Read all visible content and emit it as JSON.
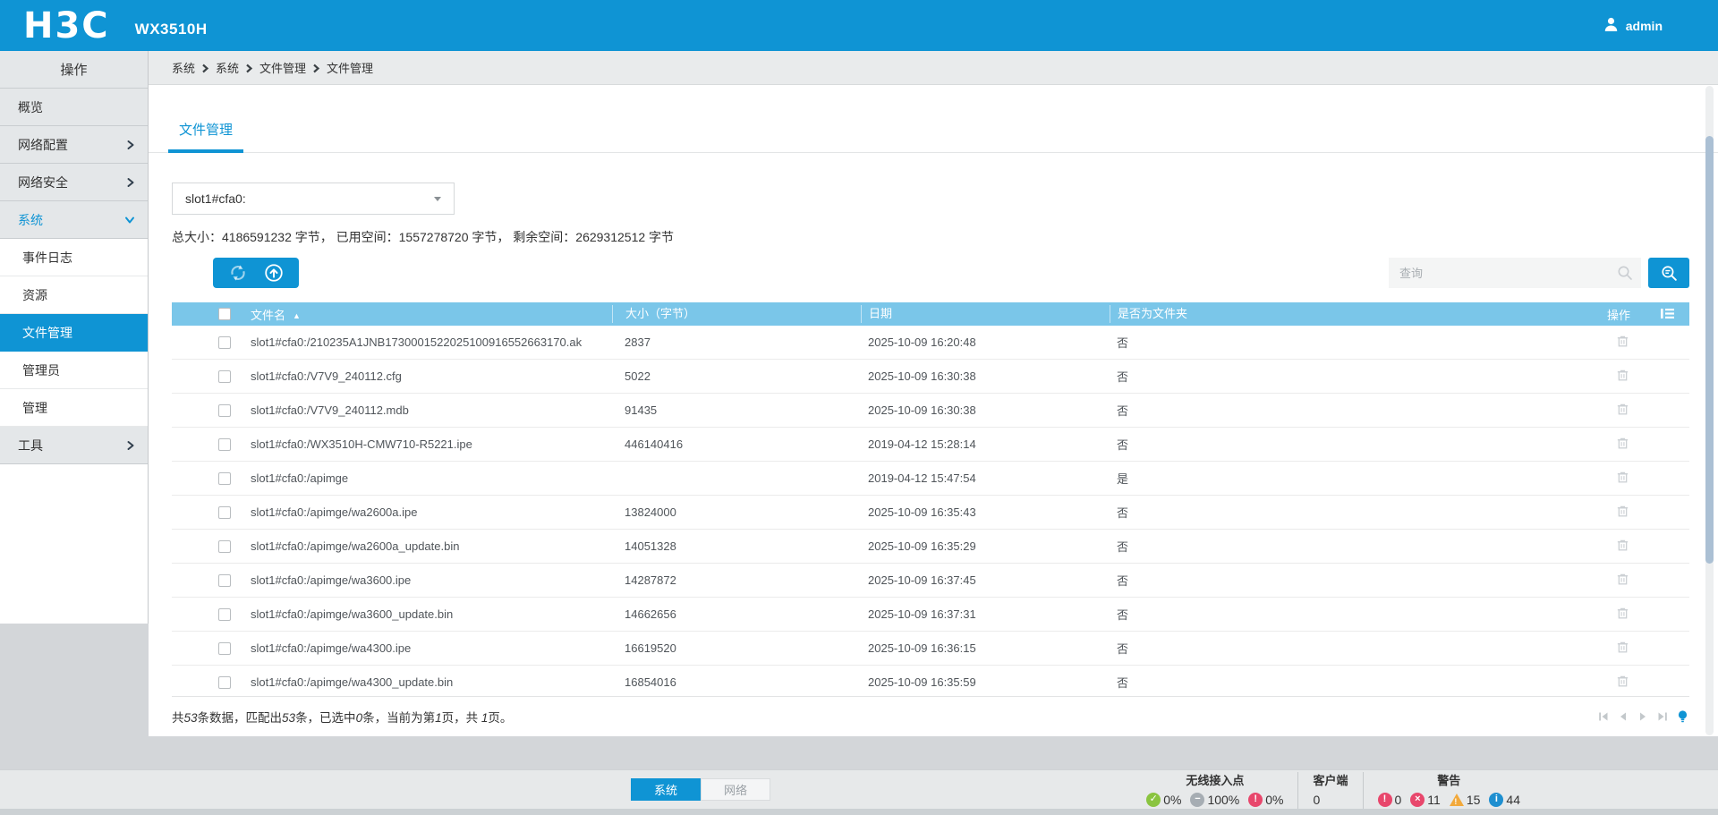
{
  "brand": {
    "logo_text": "H3C",
    "model": "WX3510H"
  },
  "user": {
    "name": "admin"
  },
  "colors": {
    "accent": "#0f94d4",
    "table_header_bg": "#7ac6e9",
    "success": "#8ac440",
    "neutral": "#a6adb3",
    "danger": "#e8476c",
    "warning": "#f2a93b",
    "info": "#1e8fd0"
  },
  "sidebar": {
    "title": "操作",
    "items": [
      {
        "label": "概览",
        "level": "top"
      },
      {
        "label": "网络配置",
        "level": "top",
        "chevron": "right"
      },
      {
        "label": "网络安全",
        "level": "top",
        "chevron": "right"
      },
      {
        "label": "系统",
        "level": "top",
        "chevron": "down",
        "active": true
      },
      {
        "label": "事件日志",
        "level": "sub"
      },
      {
        "label": "资源",
        "level": "sub"
      },
      {
        "label": "文件管理",
        "level": "sub",
        "selected": true
      },
      {
        "label": "管理员",
        "level": "sub"
      },
      {
        "label": "管理",
        "level": "sub"
      },
      {
        "label": "工具",
        "level": "top",
        "chevron": "right"
      }
    ]
  },
  "breadcrumb": [
    "系统",
    "系统",
    "文件管理",
    "文件管理"
  ],
  "tabs": {
    "file_management": "文件管理"
  },
  "file_panel": {
    "volume_selected": "slot1#cfa0:",
    "storage_summary": "总大小：4186591232 字节， 已用空间：1557278720 字节， 剩余空间：2629312512 字节",
    "search": {
      "placeholder": "查询"
    }
  },
  "table": {
    "headers": {
      "name": "文件名",
      "size": "大小（字节）",
      "date": "日期",
      "folder": "是否为文件夹",
      "action": "操作"
    },
    "rows": [
      {
        "name": "slot1#cfa0:/210235A1JNB1730001522025100916552663170.ak",
        "size": "2837",
        "date": "2025-10-09 16:20:48",
        "folder": "否"
      },
      {
        "name": "slot1#cfa0:/V7V9_240112.cfg",
        "size": "5022",
        "date": "2025-10-09 16:30:38",
        "folder": "否"
      },
      {
        "name": "slot1#cfa0:/V7V9_240112.mdb",
        "size": "91435",
        "date": "2025-10-09 16:30:38",
        "folder": "否"
      },
      {
        "name": "slot1#cfa0:/WX3510H-CMW710-R5221.ipe",
        "size": "446140416",
        "date": "2019-04-12 15:28:14",
        "folder": "否"
      },
      {
        "name": "slot1#cfa0:/apimge",
        "size": "",
        "date": "2019-04-12 15:47:54",
        "folder": "是"
      },
      {
        "name": "slot1#cfa0:/apimge/wa2600a.ipe",
        "size": "13824000",
        "date": "2025-10-09 16:35:43",
        "folder": "否"
      },
      {
        "name": "slot1#cfa0:/apimge/wa2600a_update.bin",
        "size": "14051328",
        "date": "2025-10-09 16:35:29",
        "folder": "否"
      },
      {
        "name": "slot1#cfa0:/apimge/wa3600.ipe",
        "size": "14287872",
        "date": "2025-10-09 16:37:45",
        "folder": "否"
      },
      {
        "name": "slot1#cfa0:/apimge/wa3600_update.bin",
        "size": "14662656",
        "date": "2025-10-09 16:37:31",
        "folder": "否"
      },
      {
        "name": "slot1#cfa0:/apimge/wa4300.ipe",
        "size": "16619520",
        "date": "2025-10-09 16:36:15",
        "folder": "否"
      },
      {
        "name": "slot1#cfa0:/apimge/wa4300_update.bin",
        "size": "16854016",
        "date": "2025-10-09 16:35:59",
        "folder": "否"
      }
    ],
    "footer_parts": [
      {
        "text": "共"
      },
      {
        "text": "53",
        "italic": true
      },
      {
        "text": "条数据，匹配出"
      },
      {
        "text": "53",
        "italic": true
      },
      {
        "text": "条，已选中"
      },
      {
        "text": "0",
        "italic": true
      },
      {
        "text": "条，当前为第"
      },
      {
        "text": "1",
        "italic": true
      },
      {
        "text": "页，共 "
      },
      {
        "text": "1",
        "italic": true
      },
      {
        "text": "页。"
      }
    ]
  },
  "bottom_bar": {
    "context_buttons": [
      {
        "label": "系统",
        "active": true
      },
      {
        "label": "网络",
        "active": false
      }
    ],
    "status_groups": [
      {
        "label": "无线接入点",
        "stats": [
          {
            "icon": "check",
            "value": "0%"
          },
          {
            "icon": "minus",
            "value": "100%"
          },
          {
            "icon": "exclaim",
            "value": "0%"
          }
        ]
      },
      {
        "label": "客户端",
        "stats": [
          {
            "icon": "none",
            "value": "0"
          }
        ]
      },
      {
        "label": "警告",
        "stats": [
          {
            "icon": "exclaim",
            "value": "0"
          },
          {
            "icon": "cross",
            "value": "11"
          },
          {
            "icon": "triangle",
            "value": "15"
          },
          {
            "icon": "info",
            "value": "44"
          }
        ]
      }
    ]
  }
}
